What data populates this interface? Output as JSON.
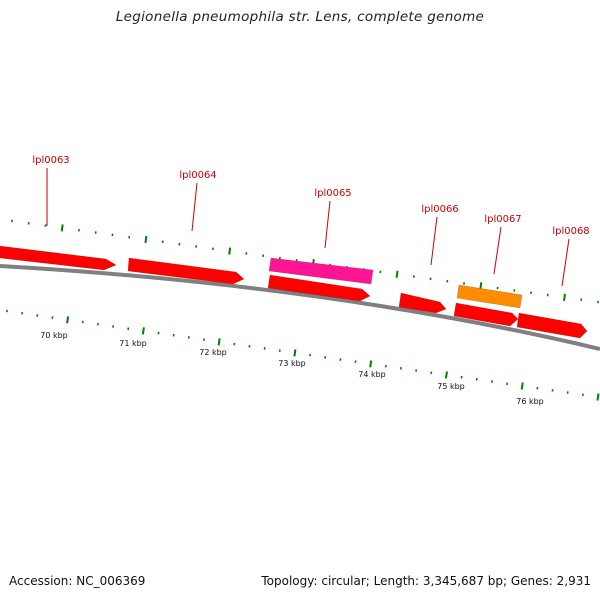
{
  "title": "Legionella pneumophila str. Lens, complete genome",
  "footer": {
    "accession": "Accession: NC_006369",
    "summary": "Topology: circular; Length: 3,345,687 bp; Genes: 2,931"
  },
  "colors": {
    "backbone": "#808080",
    "cds": "#ff0000",
    "highlight_pink": "#ff1493",
    "highlight_orange": "#ff8c00",
    "label": "#cc0000",
    "tick": "#008000"
  },
  "genes": [
    {
      "id": "lpl0063",
      "label": "lpl0063"
    },
    {
      "id": "lpl0064",
      "label": "lpl0064"
    },
    {
      "id": "lpl0065",
      "label": "lpl0065"
    },
    {
      "id": "lpl0066",
      "label": "lpl0066"
    },
    {
      "id": "lpl0067",
      "label": "lpl0067"
    },
    {
      "id": "lpl0068",
      "label": "lpl0068"
    }
  ],
  "scale_labels": [
    "70 kbp",
    "71 kbp",
    "72 kbp",
    "73 kbp",
    "74 kbp",
    "75 kbp",
    "76 kbp"
  ]
}
